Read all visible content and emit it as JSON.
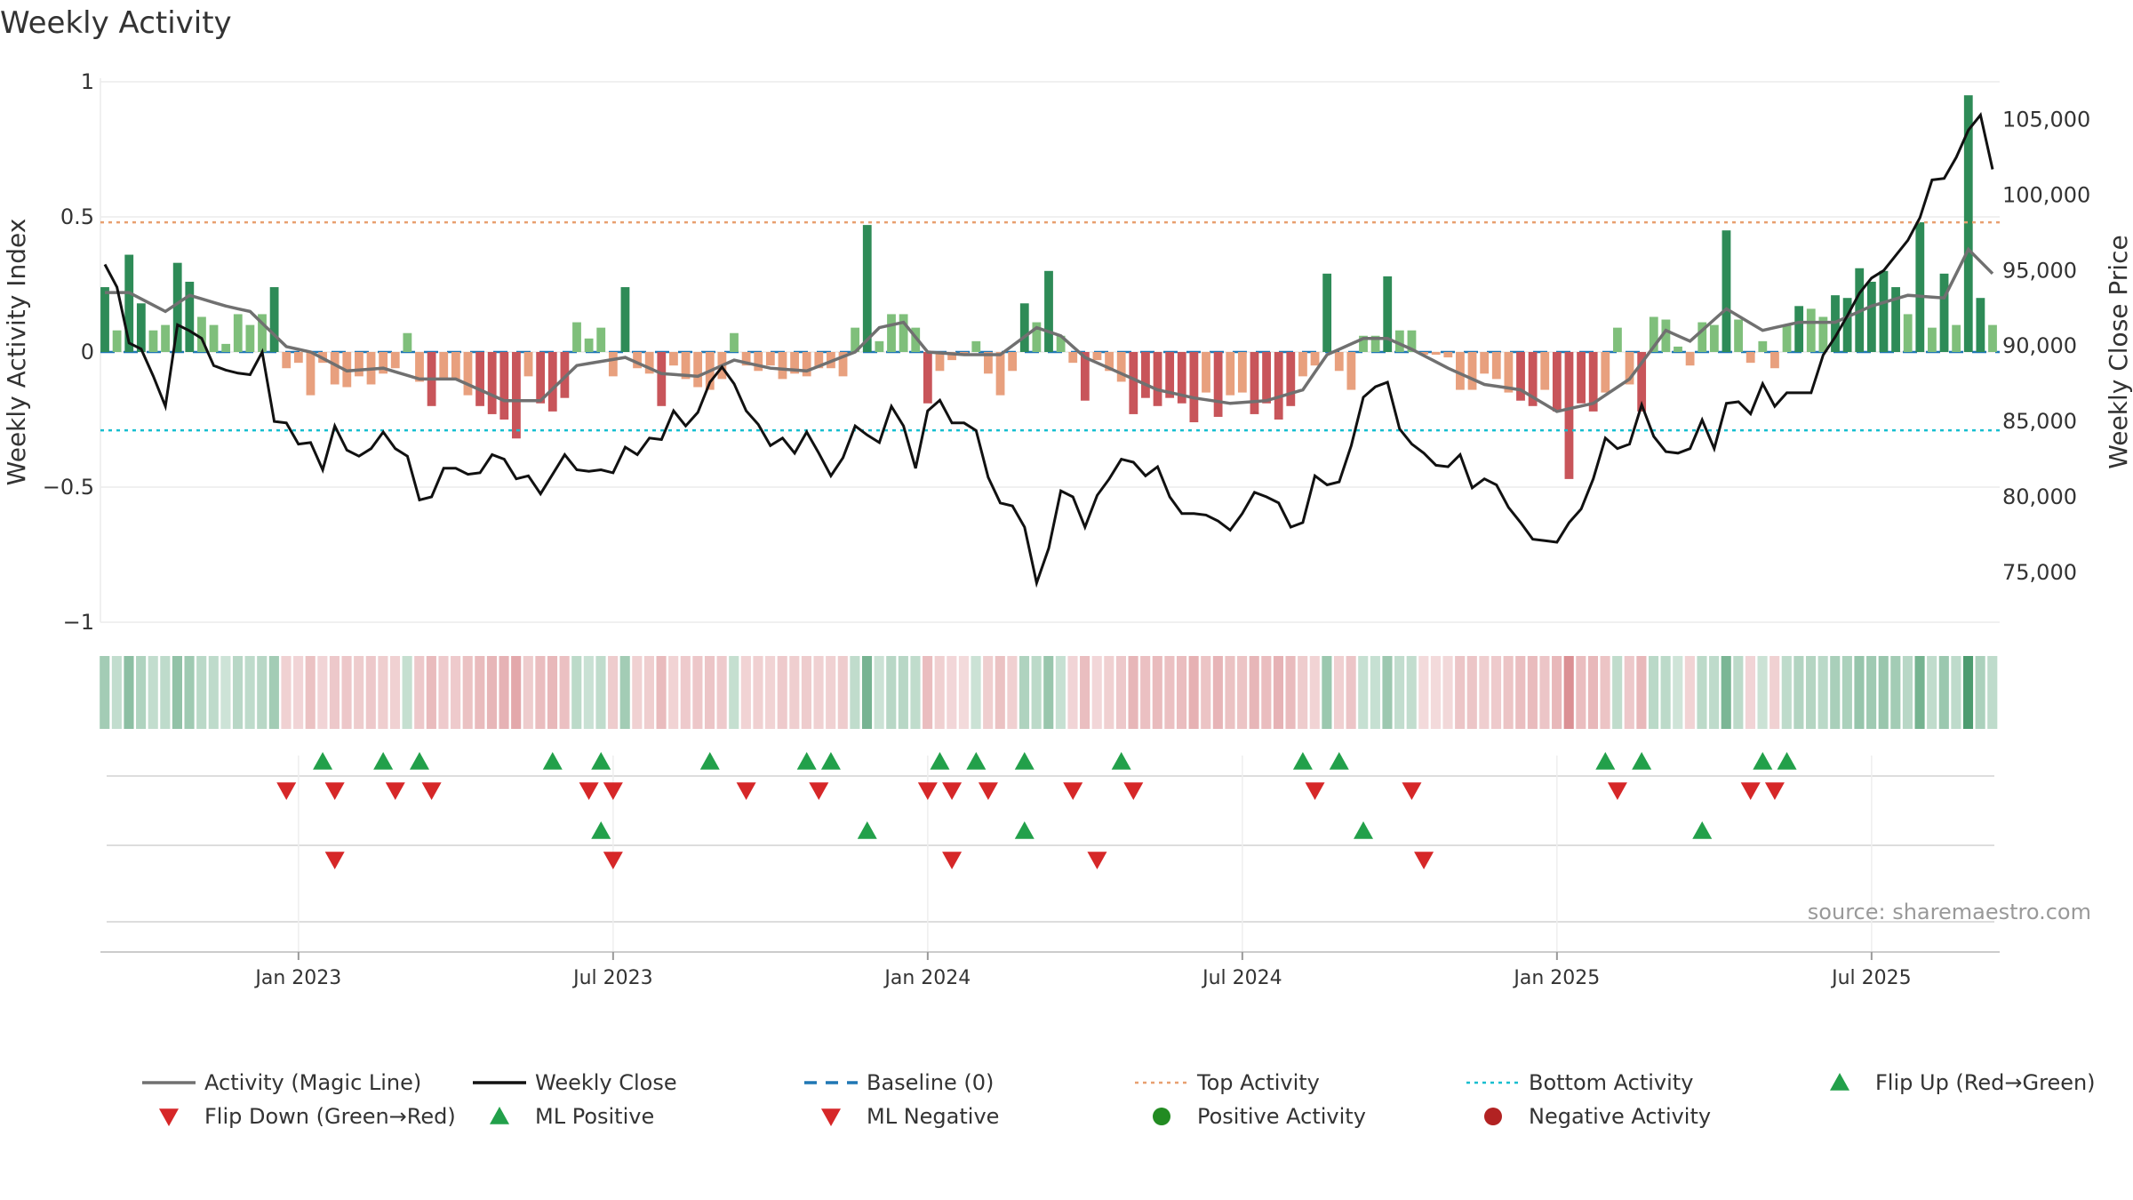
{
  "title": "Weekly Activity",
  "source": "source: sharemaestro.com",
  "colors": {
    "pos_strong": "#2e8b57",
    "pos_light": "#7fbf7b",
    "neg_strong": "#c8555a",
    "neg_light": "#e8a07e",
    "magic_line": "#707070",
    "close_line": "#111111",
    "baseline": "#1f77b4",
    "top_line": "#e8a070",
    "bottom_line": "#17becf",
    "marker_up": "#22a04a",
    "marker_down": "#d62728",
    "pos_dot": "#228b22",
    "neg_dot": "#b22222"
  },
  "chart_data": {
    "type": "bar",
    "weeks": 157,
    "x_labels": [
      {
        "label": "Jan 2023",
        "week": 16
      },
      {
        "label": "Jul 2023",
        "week": 42
      },
      {
        "label": "Jan 2024",
        "week": 68
      },
      {
        "label": "Jul 2024",
        "week": 94
      },
      {
        "label": "Jan 2025",
        "week": 120
      },
      {
        "label": "Jul 2025",
        "week": 146
      }
    ],
    "left_axis": {
      "label": "Weekly Activity Index",
      "ylim": [
        -1,
        1
      ],
      "ticks": [
        {
          "v": 1,
          "t": "1"
        },
        {
          "v": 0.5,
          "t": "0.5"
        },
        {
          "v": 0,
          "t": "0"
        },
        {
          "v": -0.5,
          "t": "−0.5"
        },
        {
          "v": -1,
          "t": "−1"
        }
      ]
    },
    "right_axis": {
      "label": "Weekly Close Price",
      "ylim": [
        71700,
        107500
      ],
      "ticks": [
        {
          "v": 105000,
          "t": "105,000"
        },
        {
          "v": 100000,
          "t": "100,000"
        },
        {
          "v": 95000,
          "t": "95,000"
        },
        {
          "v": 90000,
          "t": "90,000"
        },
        {
          "v": 85000,
          "t": "85,000"
        },
        {
          "v": 80000,
          "t": "80,000"
        },
        {
          "v": 75000,
          "t": "75,000"
        }
      ]
    },
    "top_activity": 0.48,
    "bottom_activity": -0.29,
    "activity_key": [
      [
        0,
        0.24
      ],
      [
        1,
        0.08
      ],
      [
        2,
        0.36
      ],
      [
        3,
        0.18
      ],
      [
        4,
        0.08
      ],
      [
        5,
        0.1
      ],
      [
        6,
        0.33
      ],
      [
        7,
        0.26
      ],
      [
        8,
        0.13
      ],
      [
        9,
        0.1
      ],
      [
        10,
        0.03
      ],
      [
        11,
        0.14
      ],
      [
        12,
        0.1
      ],
      [
        13,
        0.14
      ],
      [
        14,
        0.24
      ],
      [
        15,
        -0.06
      ],
      [
        16,
        -0.04
      ],
      [
        17,
        -0.16
      ],
      [
        18,
        -0.04
      ],
      [
        19,
        -0.12
      ],
      [
        20,
        -0.13
      ],
      [
        21,
        -0.09
      ],
      [
        22,
        -0.12
      ],
      [
        23,
        -0.08
      ],
      [
        24,
        -0.06
      ],
      [
        25,
        0.07
      ],
      [
        26,
        -0.11
      ],
      [
        27,
        -0.2
      ],
      [
        28,
        -0.1
      ],
      [
        29,
        -0.1
      ],
      [
        30,
        -0.16
      ],
      [
        31,
        -0.2
      ],
      [
        32,
        -0.23
      ],
      [
        33,
        -0.25
      ],
      [
        34,
        -0.32
      ],
      [
        35,
        -0.09
      ],
      [
        36,
        -0.19
      ],
      [
        37,
        -0.22
      ],
      [
        38,
        -0.17
      ],
      [
        39,
        0.11
      ],
      [
        40,
        0.05
      ],
      [
        41,
        0.09
      ],
      [
        42,
        -0.09
      ],
      [
        43,
        0.24
      ],
      [
        44,
        -0.06
      ],
      [
        45,
        -0.08
      ],
      [
        46,
        -0.2
      ],
      [
        47,
        -0.05
      ],
      [
        48,
        -0.1
      ],
      [
        49,
        -0.13
      ],
      [
        50,
        -0.14
      ],
      [
        51,
        -0.1
      ],
      [
        52,
        0.07
      ],
      [
        53,
        -0.05
      ],
      [
        54,
        -0.07
      ],
      [
        55,
        -0.05
      ],
      [
        56,
        -0.1
      ],
      [
        57,
        -0.08
      ],
      [
        58,
        -0.09
      ],
      [
        59,
        -0.06
      ],
      [
        60,
        -0.06
      ],
      [
        61,
        -0.09
      ],
      [
        62,
        0.09
      ],
      [
        63,
        0.47
      ],
      [
        64,
        0.04
      ],
      [
        65,
        0.14
      ],
      [
        66,
        0.14
      ],
      [
        67,
        0.09
      ],
      [
        68,
        -0.19
      ],
      [
        69,
        -0.07
      ],
      [
        70,
        -0.03
      ],
      [
        71,
        -0.01
      ],
      [
        72,
        0.04
      ],
      [
        73,
        -0.08
      ],
      [
        74,
        -0.16
      ],
      [
        75,
        -0.07
      ],
      [
        76,
        0.18
      ],
      [
        77,
        0.11
      ],
      [
        78,
        0.3
      ],
      [
        79,
        0.06
      ],
      [
        80,
        -0.04
      ],
      [
        81,
        -0.18
      ],
      [
        82,
        -0.03
      ],
      [
        83,
        -0.07
      ],
      [
        84,
        -0.11
      ],
      [
        85,
        -0.23
      ],
      [
        86,
        -0.17
      ],
      [
        87,
        -0.2
      ],
      [
        88,
        -0.17
      ],
      [
        89,
        -0.19
      ],
      [
        90,
        -0.26
      ],
      [
        91,
        -0.15
      ],
      [
        92,
        -0.24
      ],
      [
        93,
        -0.16
      ],
      [
        94,
        -0.15
      ],
      [
        95,
        -0.23
      ],
      [
        96,
        -0.19
      ],
      [
        97,
        -0.25
      ],
      [
        98,
        -0.2
      ],
      [
        99,
        -0.09
      ],
      [
        100,
        -0.05
      ],
      [
        101,
        0.29
      ],
      [
        102,
        -0.07
      ],
      [
        103,
        -0.14
      ],
      [
        104,
        0.06
      ],
      [
        105,
        0.06
      ],
      [
        106,
        0.28
      ],
      [
        107,
        0.08
      ],
      [
        108,
        0.08
      ],
      [
        109,
        -0.01
      ],
      [
        110,
        -0.01
      ],
      [
        111,
        -0.02
      ],
      [
        112,
        -0.14
      ],
      [
        113,
        -0.14
      ],
      [
        114,
        -0.08
      ],
      [
        115,
        -0.1
      ],
      [
        116,
        -0.15
      ],
      [
        117,
        -0.18
      ],
      [
        118,
        -0.2
      ],
      [
        119,
        -0.14
      ],
      [
        120,
        -0.22
      ],
      [
        121,
        -0.47
      ],
      [
        122,
        -0.19
      ],
      [
        123,
        -0.22
      ],
      [
        124,
        -0.15
      ],
      [
        125,
        0.09
      ],
      [
        126,
        -0.12
      ],
      [
        127,
        -0.22
      ],
      [
        128,
        0.13
      ],
      [
        129,
        0.12
      ],
      [
        130,
        0.02
      ],
      [
        131,
        -0.05
      ],
      [
        132,
        0.11
      ],
      [
        133,
        0.1
      ],
      [
        134,
        0.45
      ],
      [
        135,
        0.12
      ],
      [
        136,
        -0.04
      ],
      [
        137,
        0.04
      ],
      [
        138,
        -0.06
      ],
      [
        139,
        0.1
      ],
      [
        140,
        0.17
      ],
      [
        141,
        0.16
      ],
      [
        142,
        0.13
      ],
      [
        143,
        0.21
      ],
      [
        144,
        0.2
      ],
      [
        145,
        0.31
      ],
      [
        146,
        0.26
      ],
      [
        147,
        0.3
      ],
      [
        148,
        0.24
      ],
      [
        149,
        0.14
      ],
      [
        150,
        0.48
      ],
      [
        151,
        0.09
      ],
      [
        152,
        0.29
      ],
      [
        153,
        0.1
      ],
      [
        154,
        0.95
      ],
      [
        155,
        0.2
      ],
      [
        156,
        0.1
      ]
    ],
    "magic_line_key": [
      [
        0,
        0.22
      ],
      [
        2,
        0.22
      ],
      [
        5,
        0.15
      ],
      [
        7,
        0.21
      ],
      [
        10,
        0.17
      ],
      [
        12,
        0.15
      ],
      [
        15,
        0.02
      ],
      [
        17,
        0.0
      ],
      [
        20,
        -0.07
      ],
      [
        23,
        -0.06
      ],
      [
        26,
        -0.1
      ],
      [
        29,
        -0.1
      ],
      [
        33,
        -0.18
      ],
      [
        36,
        -0.18
      ],
      [
        39,
        -0.05
      ],
      [
        43,
        -0.02
      ],
      [
        46,
        -0.08
      ],
      [
        49,
        -0.09
      ],
      [
        52,
        -0.03
      ],
      [
        55,
        -0.06
      ],
      [
        58,
        -0.07
      ],
      [
        62,
        0.0
      ],
      [
        64,
        0.09
      ],
      [
        66,
        0.11
      ],
      [
        68,
        0.0
      ],
      [
        71,
        -0.01
      ],
      [
        74,
        -0.01
      ],
      [
        77,
        0.09
      ],
      [
        79,
        0.06
      ],
      [
        81,
        -0.02
      ],
      [
        84,
        -0.08
      ],
      [
        87,
        -0.14
      ],
      [
        90,
        -0.17
      ],
      [
        93,
        -0.19
      ],
      [
        96,
        -0.18
      ],
      [
        99,
        -0.14
      ],
      [
        101,
        -0.01
      ],
      [
        104,
        0.05
      ],
      [
        106,
        0.05
      ],
      [
        108,
        0.01
      ],
      [
        111,
        -0.06
      ],
      [
        114,
        -0.12
      ],
      [
        117,
        -0.14
      ],
      [
        120,
        -0.22
      ],
      [
        123,
        -0.19
      ],
      [
        126,
        -0.1
      ],
      [
        129,
        0.08
      ],
      [
        131,
        0.04
      ],
      [
        134,
        0.16
      ],
      [
        137,
        0.08
      ],
      [
        140,
        0.11
      ],
      [
        143,
        0.11
      ],
      [
        146,
        0.17
      ],
      [
        149,
        0.21
      ],
      [
        152,
        0.2
      ],
      [
        154,
        0.38
      ],
      [
        156,
        0.29
      ]
    ],
    "close_key": [
      [
        0,
        95400
      ],
      [
        1,
        93900
      ],
      [
        2,
        90200
      ],
      [
        3,
        89800
      ],
      [
        4,
        88000
      ],
      [
        5,
        86000
      ],
      [
        6,
        91400
      ],
      [
        7,
        91000
      ],
      [
        8,
        90500
      ],
      [
        9,
        88700
      ],
      [
        10,
        88400
      ],
      [
        11,
        88200
      ],
      [
        12,
        88100
      ],
      [
        13,
        89600
      ],
      [
        14,
        85000
      ],
      [
        15,
        84900
      ],
      [
        16,
        83500
      ],
      [
        17,
        83600
      ],
      [
        18,
        81800
      ],
      [
        19,
        84700
      ],
      [
        20,
        83100
      ],
      [
        21,
        82700
      ],
      [
        22,
        83200
      ],
      [
        23,
        84300
      ],
      [
        24,
        83200
      ],
      [
        25,
        82700
      ],
      [
        26,
        79800
      ],
      [
        27,
        80000
      ],
      [
        28,
        81900
      ],
      [
        29,
        81900
      ],
      [
        30,
        81500
      ],
      [
        31,
        81600
      ],
      [
        32,
        82800
      ],
      [
        33,
        82500
      ],
      [
        34,
        81200
      ],
      [
        35,
        81400
      ],
      [
        36,
        80200
      ],
      [
        37,
        81500
      ],
      [
        38,
        82800
      ],
      [
        39,
        81800
      ],
      [
        40,
        81700
      ],
      [
        41,
        81800
      ],
      [
        42,
        81600
      ],
      [
        43,
        83300
      ],
      [
        44,
        82800
      ],
      [
        45,
        83900
      ],
      [
        46,
        83800
      ],
      [
        47,
        85700
      ],
      [
        48,
        84700
      ],
      [
        49,
        85600
      ],
      [
        50,
        87600
      ],
      [
        51,
        88600
      ],
      [
        52,
        87500
      ],
      [
        53,
        85700
      ],
      [
        54,
        84800
      ],
      [
        55,
        83400
      ],
      [
        56,
        83900
      ],
      [
        57,
        82900
      ],
      [
        58,
        84300
      ],
      [
        59,
        82900
      ],
      [
        60,
        81400
      ],
      [
        61,
        82600
      ],
      [
        62,
        84700
      ],
      [
        63,
        84100
      ],
      [
        64,
        83600
      ],
      [
        65,
        86000
      ],
      [
        66,
        84700
      ],
      [
        67,
        81900
      ],
      [
        68,
        85700
      ],
      [
        69,
        86400
      ],
      [
        70,
        84900
      ],
      [
        71,
        84900
      ],
      [
        72,
        84400
      ],
      [
        73,
        81300
      ],
      [
        74,
        79600
      ],
      [
        75,
        79400
      ],
      [
        76,
        78000
      ],
      [
        77,
        74300
      ],
      [
        78,
        76600
      ],
      [
        79,
        80400
      ],
      [
        80,
        80000
      ],
      [
        81,
        78000
      ],
      [
        82,
        80100
      ],
      [
        83,
        81200
      ],
      [
        84,
        82500
      ],
      [
        85,
        82300
      ],
      [
        86,
        81400
      ],
      [
        87,
        82000
      ],
      [
        88,
        80000
      ],
      [
        89,
        78900
      ],
      [
        90,
        78900
      ],
      [
        91,
        78800
      ],
      [
        92,
        78400
      ],
      [
        93,
        77800
      ],
      [
        94,
        78900
      ],
      [
        95,
        80300
      ],
      [
        96,
        80000
      ],
      [
        97,
        79600
      ],
      [
        98,
        78000
      ],
      [
        99,
        78300
      ],
      [
        100,
        81400
      ],
      [
        101,
        80800
      ],
      [
        102,
        81000
      ],
      [
        103,
        83400
      ],
      [
        104,
        86600
      ],
      [
        105,
        87300
      ],
      [
        106,
        87600
      ],
      [
        107,
        84500
      ],
      [
        108,
        83500
      ],
      [
        109,
        82900
      ],
      [
        110,
        82100
      ],
      [
        111,
        82000
      ],
      [
        112,
        82800
      ],
      [
        113,
        80600
      ],
      [
        114,
        81200
      ],
      [
        115,
        80800
      ],
      [
        116,
        79300
      ],
      [
        117,
        78300
      ],
      [
        118,
        77200
      ],
      [
        119,
        77100
      ],
      [
        120,
        77000
      ],
      [
        121,
        78300
      ],
      [
        122,
        79200
      ],
      [
        123,
        81200
      ],
      [
        124,
        83900
      ],
      [
        125,
        83200
      ],
      [
        126,
        83500
      ],
      [
        127,
        86100
      ],
      [
        128,
        84000
      ],
      [
        129,
        83000
      ],
      [
        130,
        82900
      ],
      [
        131,
        83200
      ],
      [
        132,
        85100
      ],
      [
        133,
        83200
      ],
      [
        134,
        86200
      ],
      [
        135,
        86300
      ],
      [
        136,
        85500
      ],
      [
        137,
        87500
      ],
      [
        138,
        86000
      ],
      [
        139,
        86900
      ],
      [
        140,
        86900
      ],
      [
        141,
        86900
      ],
      [
        142,
        89400
      ],
      [
        143,
        90600
      ],
      [
        144,
        92000
      ],
      [
        145,
        93500
      ],
      [
        146,
        94500
      ],
      [
        147,
        95000
      ],
      [
        148,
        96000
      ],
      [
        149,
        97000
      ],
      [
        150,
        98500
      ],
      [
        151,
        101000
      ],
      [
        152,
        101100
      ],
      [
        153,
        102500
      ],
      [
        154,
        104300
      ],
      [
        155,
        105300
      ],
      [
        156,
        101700
      ]
    ],
    "flip_up_weeks": [
      18,
      23,
      26,
      37,
      41,
      50,
      58,
      60,
      69,
      72,
      76,
      84,
      99,
      102,
      124,
      127,
      137,
      139
    ],
    "flip_down_weeks": [
      15,
      19,
      24,
      27,
      40,
      42,
      53,
      59,
      68,
      70,
      73,
      80,
      85,
      100,
      108,
      125,
      136,
      138
    ],
    "ml_positive_weeks": [
      41,
      63,
      76,
      104,
      132
    ],
    "ml_negative_weeks": [
      19,
      42,
      70,
      82,
      109
    ],
    "legend": [
      {
        "label": "Activity (Magic Line)",
        "kind": "line",
        "style": "solid-gray"
      },
      {
        "label": "Weekly Close",
        "kind": "line",
        "style": "solid-black"
      },
      {
        "label": "Baseline (0)",
        "kind": "line",
        "style": "dash-blue"
      },
      {
        "label": "Top Activity",
        "kind": "line",
        "style": "dot-orange"
      },
      {
        "label": "Bottom Activity",
        "kind": "line",
        "style": "dot-cyan"
      },
      {
        "label": "Flip Up (Red→Green)",
        "kind": "marker",
        "style": "tri-up"
      },
      {
        "label": "Flip Down (Green→Red)",
        "kind": "marker",
        "style": "tri-down"
      },
      {
        "label": "ML Positive",
        "kind": "marker",
        "style": "tri-up"
      },
      {
        "label": "ML Negative",
        "kind": "marker",
        "style": "tri-down"
      },
      {
        "label": "Positive Activity",
        "kind": "marker",
        "style": "dot-green"
      },
      {
        "label": "Negative Activity",
        "kind": "marker",
        "style": "dot-red"
      }
    ]
  }
}
